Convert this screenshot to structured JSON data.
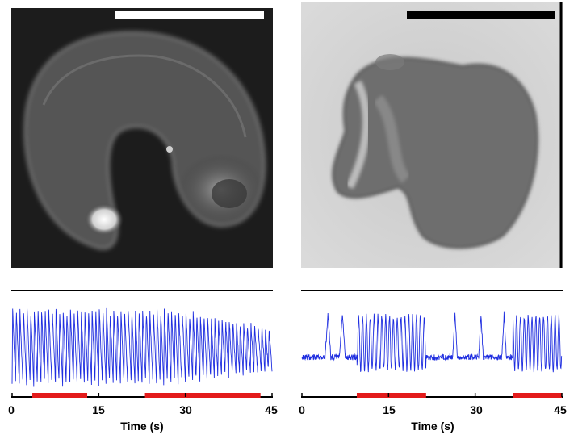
{
  "colors": {
    "trace": "#1f2ee0",
    "stim_bar": "#e31b1b",
    "axis": "#000000",
    "scale_bar_left": "#ffffff",
    "scale_bar_right": "#000000"
  },
  "images": [
    {
      "kind": "fluorescence-micrograph",
      "scale_bar_color": "white"
    },
    {
      "kind": "brightfield-micrograph",
      "scale_bar_color": "black"
    }
  ],
  "chart_data": [
    {
      "type": "line",
      "xlabel": "Time (s)",
      "xlim": [
        0,
        45
      ],
      "xticks": [
        "0",
        "15",
        "30",
        "45"
      ],
      "series": [
        {
          "values": "oscillating trace, ~1.5 Hz, amplitude slowly decreasing after ~30 s"
        }
      ],
      "stimulus_intervals": [
        [
          3.5,
          13
        ],
        [
          23,
          43
        ]
      ]
    },
    {
      "type": "line",
      "xlabel": "Time (s)",
      "xlim": [
        0,
        45
      ],
      "xticks": [
        "0",
        "15",
        "30",
        "45"
      ],
      "series": [
        {
          "values": "bursting trace with oscillatory bursts during stimulus"
        }
      ],
      "stimulus_intervals": [
        [
          9.5,
          21.5
        ],
        [
          36.5,
          45
        ]
      ]
    }
  ]
}
